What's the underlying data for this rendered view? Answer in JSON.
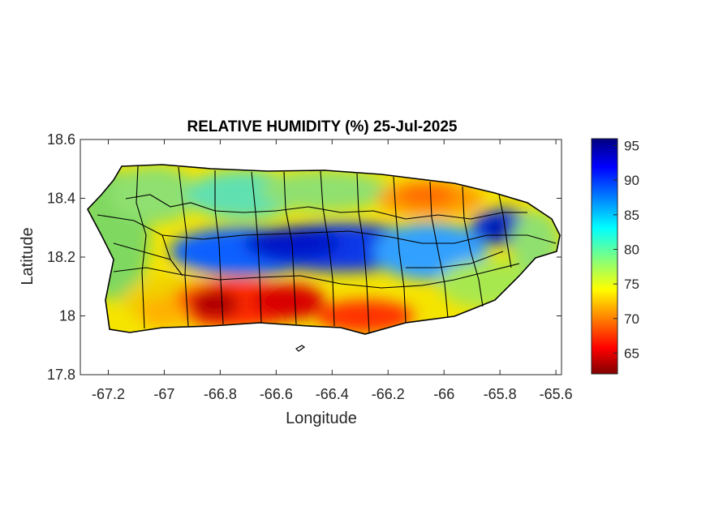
{
  "chart_data": {
    "type": "heatmap",
    "title": "RELATIVE HUMIDITY (%) 25-Jul-2025",
    "xlabel": "Longitude",
    "ylabel": "Latitude",
    "xlim": [
      -67.3,
      -65.58
    ],
    "ylim": [
      17.8,
      18.6
    ],
    "xticks": [
      -67.2,
      -67,
      -66.8,
      -66.6,
      -66.4,
      -66.2,
      -66,
      -65.8,
      -65.6
    ],
    "xtick_labels": [
      "-67.2",
      "-67",
      "-66.8",
      "-66.6",
      "-66.4",
      "-66.2",
      "-66",
      "-65.8",
      "-65.6"
    ],
    "yticks": [
      17.8,
      18,
      18.2,
      18.4,
      18.6
    ],
    "ytick_labels": [
      "17.8",
      "18",
      "18.2",
      "18.4",
      "18.6"
    ],
    "colorbar": {
      "colormap": "jet",
      "range": [
        62,
        96
      ],
      "ticks": [
        65,
        70,
        75,
        80,
        85,
        90,
        95
      ],
      "tick_labels": [
        "65",
        "70",
        "75",
        "80",
        "85",
        "90",
        "95"
      ]
    },
    "field_description_points": [
      {
        "lon": -66.75,
        "lat": 18.2,
        "rh": 92
      },
      {
        "lon": -66.55,
        "lat": 18.21,
        "rh": 93
      },
      {
        "lon": -66.4,
        "lat": 18.2,
        "rh": 92
      },
      {
        "lon": -66.2,
        "lat": 18.2,
        "rh": 88
      },
      {
        "lon": -65.8,
        "lat": 18.3,
        "rh": 93
      },
      {
        "lon": -66.8,
        "lat": 18.05,
        "rh": 64
      },
      {
        "lon": -66.6,
        "lat": 18.04,
        "rh": 65
      },
      {
        "lon": -66.3,
        "lat": 17.97,
        "rh": 67
      },
      {
        "lon": -66.1,
        "lat": 18.4,
        "rh": 70
      },
      {
        "lon": -67.1,
        "lat": 18.3,
        "rh": 78
      },
      {
        "lon": -65.7,
        "lat": 18.2,
        "rh": 80
      }
    ],
    "grid": false,
    "legend": "colorbar-right"
  }
}
